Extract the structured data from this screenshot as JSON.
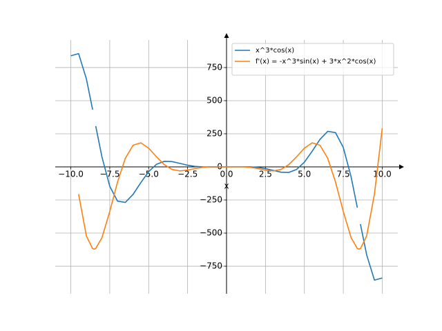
{
  "chart_data": {
    "type": "line",
    "x_label": "x",
    "x": [
      -10,
      -9.5,
      -9,
      -8.6,
      -8.5,
      -8.4,
      -8,
      -7.5,
      -7,
      -6.5,
      -6,
      -5.5,
      -5,
      -4.5,
      -4,
      -3.5,
      -3,
      -2.5,
      -2,
      -1.5,
      -1,
      -0.5,
      0,
      0.5,
      1,
      1.5,
      2,
      2.5,
      3,
      3.5,
      4,
      4.5,
      5,
      5.5,
      6,
      6.5,
      7,
      7.5,
      8,
      8.4,
      8.5,
      8.6,
      9,
      9.5,
      10
    ],
    "series": [
      {
        "name": "x^3*cos(x)",
        "color": "#1f77b4",
        "values": [
          839.1,
          854.98,
          664.19,
          432.5,
          null,
          307.8,
          74.5,
          -146.22,
          -258.59,
          -268.2,
          -207.4,
          -117.91,
          -35.46,
          19.21,
          41.83,
          40.15,
          26.73,
          12.52,
          3.33,
          -0.24,
          -0.54,
          -0.11,
          0,
          0.11,
          0.54,
          0.24,
          -3.33,
          -12.52,
          -26.73,
          -40.15,
          -41.83,
          -19.21,
          35.46,
          117.91,
          207.4,
          268.2,
          258.59,
          146.22,
          -74.5,
          -307.8,
          null,
          -432.5,
          -664.19,
          -854.98,
          -839.1
        ]
      },
      {
        "name": "f'(x) = -x^3*sin(x) + 3*x^2*cos(x)",
        "color": "#ff7f0e",
        "values": [
          null,
          -205.52,
          -521.82,
          -617.3,
          -620.86,
          -616.4,
          -534.51,
          -337.23,
          -114.53,
          64.71,
          164.05,
          181.69,
          141.14,
          76.27,
          17.07,
          -19.38,
          -30.54,
          -24.37,
          -12.27,
          -2.89,
          0.78,
          0.6,
          0,
          0.6,
          0.78,
          -2.89,
          -12.27,
          -24.37,
          -30.54,
          -19.38,
          17.07,
          76.27,
          141.14,
          181.69,
          164.05,
          64.71,
          -114.53,
          -337.23,
          -534.51,
          -616.4,
          -620.86,
          -617.3,
          -521.82,
          -205.52,
          292.27
        ]
      }
    ],
    "xlim": [
      -11,
      11
    ],
    "ylim": [
      -958,
      958
    ],
    "xticks": [
      {
        "value": -10,
        "label": "−10.0"
      },
      {
        "value": -7.5,
        "label": "−7.5"
      },
      {
        "value": -5,
        "label": "−5.0"
      },
      {
        "value": -2.5,
        "label": "−2.5"
      },
      {
        "value": 0,
        "label": "0.0"
      },
      {
        "value": 2.5,
        "label": "2.5"
      },
      {
        "value": 5,
        "label": "5.0"
      },
      {
        "value": 7.5,
        "label": "7.5"
      },
      {
        "value": 10,
        "label": "10.0"
      }
    ],
    "yticks": [
      {
        "value": -750,
        "label": "−750"
      },
      {
        "value": -500,
        "label": "−500"
      },
      {
        "value": -250,
        "label": "−250"
      },
      0,
      250,
      500,
      750
    ],
    "grid": true,
    "legend_position": "upper right"
  }
}
